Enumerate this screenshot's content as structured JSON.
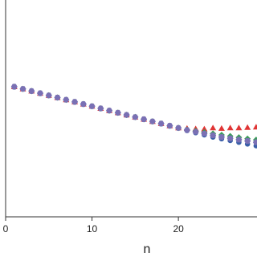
{
  "chart_data": {
    "type": "scatter",
    "x_label": "n",
    "x": [
      1,
      2,
      3,
      4,
      5,
      6,
      7,
      8,
      9,
      10,
      11,
      12,
      13,
      14,
      15,
      16,
      17,
      18,
      19,
      20,
      21,
      22,
      23,
      24,
      25,
      26,
      27,
      28,
      29
    ],
    "xlim": [
      0,
      29.1
    ],
    "xticks": [
      0,
      10,
      20
    ],
    "ylim": [
      0,
      1
    ],
    "series": [
      {
        "color": "#e03535",
        "marker": "triangle",
        "values": [
          0.6,
          0.59,
          0.58,
          0.57,
          0.56,
          0.55,
          0.54,
          0.53,
          0.52,
          0.51,
          0.5,
          0.49,
          0.48,
          0.47,
          0.46,
          0.45,
          0.44,
          0.43,
          0.42,
          0.41,
          0.408,
          0.406,
          0.405,
          0.41,
          0.408,
          0.41,
          0.41,
          0.412,
          0.414
        ]
      },
      {
        "color": "#3c9a5c",
        "marker": "diamond",
        "values": [
          0.6,
          0.59,
          0.58,
          0.57,
          0.56,
          0.55,
          0.54,
          0.53,
          0.52,
          0.51,
          0.5,
          0.49,
          0.48,
          0.47,
          0.46,
          0.45,
          0.44,
          0.43,
          0.42,
          0.41,
          0.402,
          0.396,
          0.39,
          0.384,
          0.378,
          0.372,
          0.366,
          0.36,
          0.355
        ]
      },
      {
        "color": "#3a5fa8",
        "marker": "circle",
        "values": [
          0.6,
          0.59,
          0.58,
          0.57,
          0.56,
          0.55,
          0.54,
          0.53,
          0.52,
          0.51,
          0.5,
          0.49,
          0.48,
          0.47,
          0.46,
          0.45,
          0.44,
          0.43,
          0.42,
          0.41,
          0.398,
          0.388,
          0.378,
          0.368,
          0.36,
          0.352,
          0.344,
          0.336,
          0.328
        ]
      },
      {
        "color": "#7a70b4",
        "marker": "hexagon",
        "values": [
          0.6,
          0.59,
          0.58,
          0.57,
          0.56,
          0.55,
          0.54,
          0.53,
          0.52,
          0.51,
          0.5,
          0.49,
          0.48,
          0.47,
          0.46,
          0.45,
          0.44,
          0.43,
          0.42,
          0.41,
          0.4,
          0.392,
          0.384,
          0.376,
          0.368,
          0.362,
          0.356,
          0.35,
          0.344
        ]
      }
    ]
  }
}
